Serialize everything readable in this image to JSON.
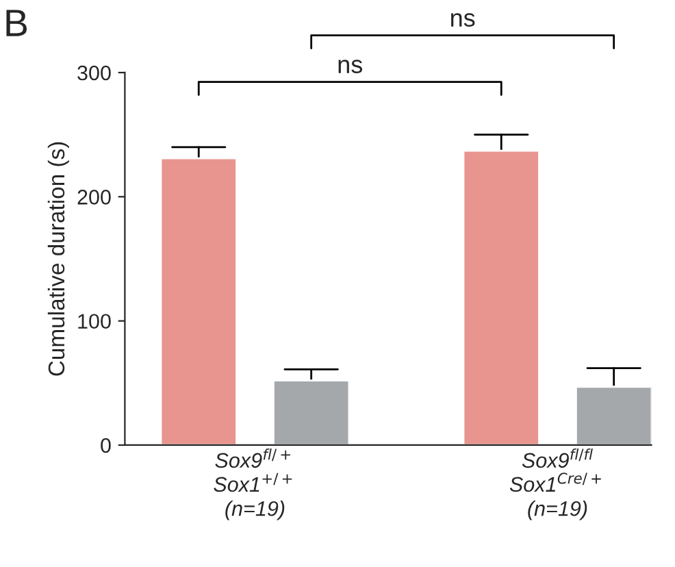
{
  "chart_data": {
    "type": "bar",
    "categories": [
      "Sox9$^{fl/+}$\nSox1$^{+/+}$\n(n=19)",
      "Sox9$^{fl/fl}$\nSox1$^{Cre/+}$\n(n=19)"
    ],
    "series": [
      {
        "color": "#e8958f",
        "values": [
          231,
          237
        ],
        "errors": [
          9,
          13
        ]
      },
      {
        "color": "#a5a8aa",
        "values": [
          52,
          47
        ],
        "errors": [
          9,
          15
        ]
      }
    ],
    "ylabel": "Cumulative duration (s)",
    "ylim": [
      0,
      300
    ],
    "yticks": [
      0,
      100,
      200,
      300
    ],
    "annotations": [
      "B",
      "ns",
      "ns"
    ],
    "grid": false,
    "legend": false
  }
}
